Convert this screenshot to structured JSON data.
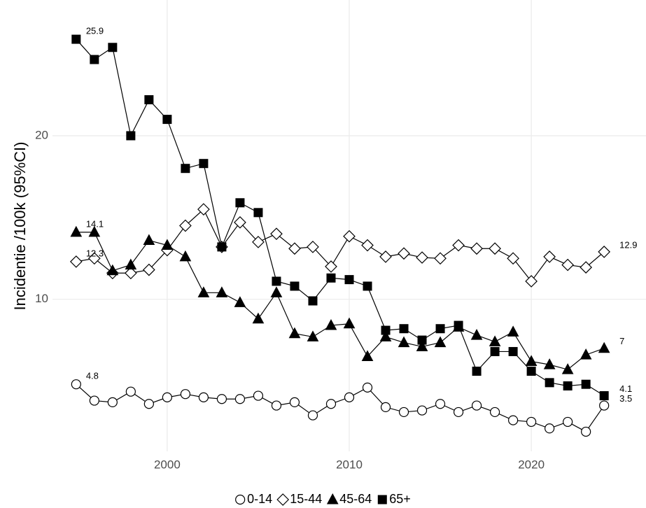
{
  "chart_data": {
    "type": "line",
    "y_label": "Incidentie /100k (95%CI)",
    "x": [
      1995,
      1996,
      1997,
      1998,
      1999,
      2000,
      2001,
      2002,
      2003,
      2004,
      2005,
      2006,
      2007,
      2008,
      2009,
      2010,
      2011,
      2012,
      2013,
      2014,
      2015,
      2016,
      2017,
      2018,
      2019,
      2020,
      2021,
      2022,
      2023,
      2024
    ],
    "xlim": [
      1993.7,
      2026.3
    ],
    "xticks": [
      2000,
      2010,
      2020
    ],
    "ylim": [
      0.7,
      28.3
    ],
    "yticks": [
      10,
      20
    ],
    "grid": true,
    "legend": "bottom",
    "series": [
      {
        "name": "0-14",
        "color": "#000000",
        "marker": "circle",
        "filled": false,
        "values": [
          4.8,
          3.8,
          3.7,
          4.35,
          3.6,
          4.0,
          4.2,
          4.0,
          3.9,
          3.9,
          4.1,
          3.5,
          3.7,
          2.9,
          3.6,
          4.0,
          4.6,
          3.4,
          3.1,
          3.2,
          3.6,
          3.1,
          3.5,
          3.1,
          2.6,
          2.5,
          2.1,
          2.5,
          1.9,
          3.5
        ],
        "value_labels": [
          "4.8",
          null,
          null,
          null,
          null,
          null,
          null,
          null,
          null,
          null,
          null,
          null,
          null,
          null,
          null,
          null,
          null,
          null,
          null,
          null,
          null,
          null,
          null,
          null,
          null,
          null,
          null,
          null,
          null,
          "3.5"
        ]
      },
      {
        "name": "15-44",
        "color": "#000000",
        "marker": "diamond",
        "filled": false,
        "values": [
          12.3,
          12.5,
          11.6,
          11.6,
          11.8,
          13.0,
          14.5,
          15.5,
          13.2,
          14.7,
          13.5,
          14.0,
          13.1,
          13.2,
          12.0,
          13.85,
          13.3,
          12.6,
          12.8,
          12.55,
          12.5,
          13.3,
          13.1,
          13.1,
          12.5,
          11.1,
          12.6,
          12.1,
          11.95,
          12.9
        ],
        "value_labels": [
          "12.3",
          null,
          null,
          null,
          null,
          null,
          null,
          null,
          null,
          null,
          null,
          null,
          null,
          null,
          null,
          null,
          null,
          null,
          null,
          null,
          null,
          null,
          null,
          null,
          null,
          null,
          null,
          null,
          null,
          "12.9"
        ]
      },
      {
        "name": "45-64",
        "color": "#000000",
        "marker": "triangle",
        "filled": true,
        "values": [
          14.1,
          14.1,
          11.75,
          12.1,
          13.6,
          13.3,
          12.6,
          10.4,
          10.4,
          9.8,
          8.8,
          10.4,
          7.9,
          7.7,
          8.4,
          8.5,
          6.5,
          7.7,
          7.35,
          7.1,
          7.35,
          8.3,
          7.8,
          7.4,
          8.0,
          6.2,
          6.0,
          5.7,
          6.6,
          7.0
        ],
        "value_labels": [
          "14.1",
          null,
          null,
          null,
          null,
          null,
          null,
          null,
          null,
          null,
          null,
          null,
          null,
          null,
          null,
          null,
          null,
          null,
          null,
          null,
          null,
          null,
          null,
          null,
          null,
          null,
          null,
          null,
          null,
          "7"
        ]
      },
      {
        "name": "65+",
        "color": "#000000",
        "marker": "square",
        "filled": true,
        "values": [
          25.9,
          24.66,
          25.4,
          20.0,
          22.2,
          21.0,
          18.0,
          18.3,
          13.2,
          15.9,
          15.3,
          11.1,
          10.8,
          9.9,
          11.3,
          11.2,
          10.8,
          8.1,
          8.2,
          7.5,
          8.2,
          8.4,
          5.6,
          6.8,
          6.8,
          5.6,
          4.9,
          4.7,
          4.8,
          4.1
        ],
        "value_labels": [
          "25.9",
          null,
          null,
          null,
          null,
          null,
          null,
          null,
          null,
          null,
          null,
          null,
          null,
          null,
          null,
          null,
          null,
          null,
          null,
          null,
          null,
          null,
          null,
          null,
          null,
          null,
          null,
          null,
          null,
          "4.1"
        ]
      }
    ]
  }
}
